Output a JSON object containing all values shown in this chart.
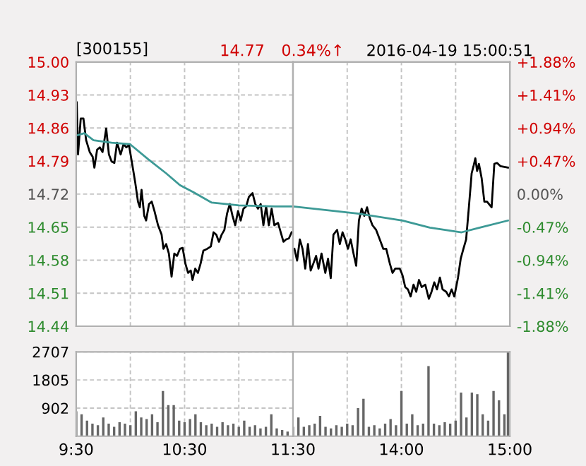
{
  "chart_data": [
    {
      "type": "line",
      "title": "[300155]",
      "annotations": [
        "14.77",
        "0.34%↑",
        "2016-04-19 15:00:51"
      ],
      "series": [
        {
          "type": "line",
          "color": "#000000",
          "x": [
            9.5,
            9.505,
            9.517,
            9.542,
            9.567,
            9.592,
            9.625,
            9.652,
            9.668,
            9.693,
            9.718,
            9.743,
            9.777,
            9.802,
            9.827,
            9.852,
            9.877,
            9.91,
            9.937,
            9.962,
            9.987,
            10.02,
            10.045,
            10.07,
            10.087,
            10.103,
            10.128,
            10.145,
            10.172,
            10.197,
            10.222,
            10.255,
            10.288,
            10.305,
            10.33,
            10.355,
            10.38,
            10.405,
            10.43,
            10.457,
            10.482,
            10.507,
            10.532,
            10.557,
            10.573,
            10.598,
            10.623,
            10.648,
            10.673,
            10.708,
            10.742,
            10.767,
            10.792,
            10.817,
            10.842,
            10.867,
            10.892,
            10.917,
            10.942,
            10.967,
            10.993,
            11.018,
            11.043,
            11.068,
            11.093,
            11.127,
            11.152,
            11.177,
            11.202,
            11.227,
            11.252,
            11.277,
            11.303,
            11.328,
            11.362,
            11.387,
            11.412,
            11.437,
            11.462,
            11.487
          ],
          "values": [
            14.844,
            14.915,
            14.804,
            14.88,
            14.88,
            14.834,
            14.809,
            14.799,
            14.776,
            14.814,
            14.819,
            14.809,
            14.859,
            14.804,
            14.789,
            14.786,
            14.829,
            14.804,
            14.826,
            14.819,
            14.824,
            14.779,
            14.744,
            14.704,
            14.692,
            14.729,
            14.674,
            14.664,
            14.699,
            14.704,
            14.684,
            14.654,
            14.634,
            14.604,
            14.614,
            14.594,
            14.545,
            14.594,
            14.589,
            14.604,
            14.606,
            14.573,
            14.553,
            14.558,
            14.538,
            14.562,
            14.553,
            14.573,
            14.6,
            14.604,
            14.609,
            14.639,
            14.634,
            14.619,
            14.634,
            14.644,
            14.679,
            14.699,
            14.674,
            14.654,
            14.684,
            14.664,
            14.689,
            14.694,
            14.714,
            14.722,
            14.699,
            14.689,
            14.699,
            14.654,
            14.694,
            14.654,
            14.689,
            14.654,
            14.659,
            14.639,
            14.619,
            14.624,
            14.626,
            14.639
          ]
        },
        {
          "type": "line",
          "color": "#3d9a96",
          "x": [
            9.5,
            9.575,
            9.66,
            9.827,
            9.995,
            10.163,
            10.33,
            10.457,
            10.582,
            10.75,
            11.002,
            11.337,
            11.5
          ],
          "values": [
            14.844,
            14.849,
            14.834,
            14.829,
            14.826,
            14.794,
            14.764,
            14.739,
            14.724,
            14.702,
            14.696,
            14.694,
            14.694
          ]
        }
      ],
      "xlim": [
        9.5,
        11.5
      ],
      "xticks": [
        {
          "value": 9.5,
          "label": null
        },
        {
          "value": 10,
          "label": null
        },
        {
          "value": 10.5,
          "label": null
        },
        {
          "value": 11,
          "label": null
        },
        {
          "value": 11.5,
          "label": null
        }
      ],
      "ylim": [
        14.44,
        15.0
      ],
      "yticks": [
        {
          "value": 14.44,
          "label": "14.44"
        },
        14.51,
        14.58,
        14.65,
        14.72,
        14.79,
        14.86,
        14.93,
        {
          "value": 15.0,
          "label": "15.00"
        }
      ],
      "grid": true,
      "tick_labels": "y"
    },
    {
      "type": "line",
      "series": [
        {
          "type": "line",
          "color": "#000000",
          "x": [
            13.013,
            13.038,
            13.063,
            13.088,
            13.113,
            13.138,
            13.163,
            13.188,
            13.213,
            13.235,
            13.263,
            13.298,
            13.323,
            13.348,
            13.373,
            13.407,
            13.432,
            13.457,
            13.482,
            13.507,
            13.532,
            13.558,
            13.583,
            13.608,
            13.633,
            13.658,
            13.683,
            13.708,
            13.733,
            13.767,
            13.8,
            13.833,
            13.86,
            13.893,
            13.918,
            13.943,
            13.985,
            14.01,
            14.035,
            14.06,
            14.085,
            14.112,
            14.137,
            14.162,
            14.187,
            14.22,
            14.253,
            14.278,
            14.303,
            14.328,
            14.355,
            14.38,
            14.413,
            14.438,
            14.463,
            14.488,
            14.522,
            14.547,
            14.572,
            14.597,
            14.623,
            14.648,
            14.665,
            14.682,
            14.698,
            14.715,
            14.74,
            14.765,
            14.79,
            14.832,
            14.857,
            14.882,
            14.915,
            14.983
          ],
          "values": [
            14.604,
            14.579,
            14.624,
            14.604,
            14.562,
            14.614,
            14.558,
            14.573,
            14.589,
            14.562,
            14.594,
            14.553,
            14.583,
            14.542,
            14.634,
            14.644,
            14.614,
            14.639,
            14.624,
            14.604,
            14.624,
            14.594,
            14.568,
            14.664,
            14.689,
            14.674,
            14.692,
            14.669,
            14.654,
            14.644,
            14.624,
            14.604,
            14.604,
            14.573,
            14.553,
            14.562,
            14.562,
            14.548,
            14.523,
            14.518,
            14.503,
            14.528,
            14.513,
            14.538,
            14.523,
            14.528,
            14.498,
            14.513,
            14.533,
            14.518,
            14.543,
            14.518,
            14.513,
            14.503,
            14.518,
            14.503,
            14.543,
            14.583,
            14.604,
            14.624,
            14.694,
            14.764,
            14.779,
            14.796,
            14.769,
            14.784,
            14.754,
            14.704,
            14.704,
            14.692,
            14.784,
            14.786,
            14.779,
            14.776
          ]
        },
        {
          "type": "line",
          "color": "#3d9a96",
          "x": [
            13.0,
            13.592,
            14.01,
            14.262,
            14.555,
            14.723,
            14.983
          ],
          "values": [
            14.694,
            14.679,
            14.664,
            14.649,
            14.639,
            14.649,
            14.664
          ]
        }
      ],
      "xlim": [
        13,
        15
      ],
      "xticks": [
        {
          "value": 13.5,
          "label": null
        },
        {
          "value": 14,
          "label": null
        },
        {
          "value": 14.5,
          "label": null
        },
        {
          "value": 15,
          "label": null
        }
      ],
      "ylim": [
        14.44,
        15.0
      ],
      "y2lim": [
        -1.88,
        1.88
      ],
      "y2ticks": [
        {
          "value": -1.88,
          "label": "-1.88%"
        },
        {
          "value": -1.41,
          "label": "-1.41%"
        },
        {
          "value": -0.94,
          "label": "-0.94%"
        },
        {
          "value": -0.47,
          "label": "-0.47%"
        },
        {
          "value": 0,
          "label": "0.00%"
        },
        {
          "value": 0.47,
          "label": "+0.47%"
        },
        {
          "value": 0.94,
          "label": "+0.94%"
        },
        {
          "value": 1.41,
          "label": "+1.41%"
        },
        {
          "value": 1.88,
          "label": "+1.88%"
        }
      ],
      "grid": true,
      "tick_labels": false
    },
    {
      "type": "bar",
      "color": "#666666",
      "x": [
        9.5,
        9.55,
        9.6,
        9.65,
        9.7,
        9.75,
        9.8,
        9.85,
        9.9,
        9.95,
        10,
        10.05,
        10.1,
        10.15,
        10.2,
        10.25,
        10.3,
        10.35,
        10.4,
        10.45,
        10.5,
        10.55,
        10.6,
        10.65,
        10.7,
        10.75,
        10.8,
        10.85,
        10.9,
        10.95,
        11,
        11.05,
        11.1,
        11.15,
        11.2,
        11.25,
        11.3,
        11.35,
        11.4,
        11.45
      ],
      "values": [
        800,
        700,
        500,
        400,
        350,
        600,
        400,
        300,
        450,
        400,
        350,
        800,
        600,
        550,
        700,
        450,
        1450,
        1000,
        1000,
        500,
        450,
        550,
        700,
        450,
        350,
        400,
        300,
        450,
        350,
        400,
        300,
        500,
        300,
        350,
        250,
        300,
        700,
        250,
        200,
        150
      ],
      "xlim": [
        9.5,
        11.5
      ],
      "xticks": [
        {
          "value": 9.5,
          "label": "9:30"
        },
        {
          "value": 10,
          "label": null
        },
        {
          "value": 10.5,
          "label": "10:30"
        },
        {
          "value": 11,
          "label": null
        },
        {
          "value": 11.5,
          "label": "11:30"
        }
      ],
      "ylim": [
        0,
        2707
      ],
      "yticks": [
        902,
        1805,
        2707
      ],
      "grid": true
    },
    {
      "type": "bar",
      "color": "#666666",
      "x": [
        13,
        13.05,
        13.1,
        13.15,
        13.2,
        13.25,
        13.3,
        13.35,
        13.4,
        13.45,
        13.5,
        13.55,
        13.6,
        13.65,
        13.7,
        13.75,
        13.8,
        13.85,
        13.9,
        13.95,
        14,
        14.05,
        14.1,
        14.15,
        14.2,
        14.25,
        14.3,
        14.35,
        14.4,
        14.45,
        14.5,
        14.55,
        14.6,
        14.65,
        14.7,
        14.75,
        14.8,
        14.85,
        14.9,
        14.95,
        14.983
      ],
      "values": [
        300,
        600,
        300,
        350,
        400,
        650,
        300,
        250,
        350,
        300,
        400,
        350,
        900,
        1200,
        300,
        350,
        250,
        400,
        550,
        350,
        1450,
        400,
        700,
        350,
        400,
        2250,
        400,
        350,
        450,
        400,
        500,
        1400,
        600,
        1400,
        1350,
        700,
        500,
        1450,
        1150,
        700,
        2700
      ],
      "xlim": [
        13,
        15
      ],
      "xticks": [
        {
          "value": 13.5,
          "label": null
        },
        {
          "value": 14,
          "label": "14:00"
        },
        {
          "value": 14.5,
          "label": null
        },
        {
          "value": 15,
          "label": "15:00"
        }
      ],
      "ylim": [
        0,
        2707
      ],
      "grid": true,
      "tick_labels": "x"
    }
  ]
}
